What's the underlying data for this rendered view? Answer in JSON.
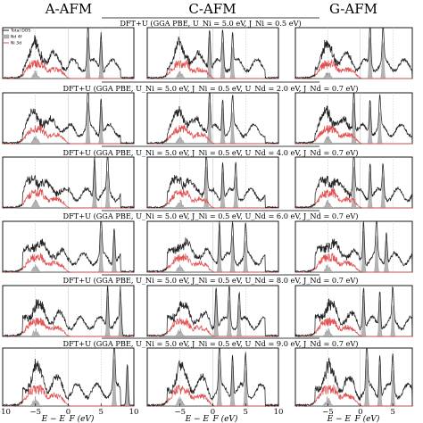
{
  "chart_data": {
    "type": "area",
    "columns": [
      "A-AFM",
      "C-AFM",
      "G-AFM"
    ],
    "row_titles": [
      "DFT+U (GGA PBE,    U_Ni = 5.0 eV, J_Ni = 0.5 eV)",
      "DFT+U (GGA PBE,    U_Ni = 5.0 eV, J_Ni = 0.5 eV,    U_Nd = 2.0 eV, J_Nd = 0.7 eV)",
      "DFT+U (GGA PBE,    U_Ni = 5.0 eV, J_Ni = 0.5 eV,    U_Nd = 4.0 eV, J_Nd = 0.7 eV)",
      "DFT+U (GGA PBE,    U_Ni = 5.0 eV, J_Ni = 0.5 eV,    U_Nd = 6.0 eV, J_Nd = 0.7 eV)",
      "DFT+U (GGA PBE,    U_Ni = 5.0 eV, J_Ni = 0.5 eV,    U_Nd = 8.0 eV, J_Nd = 0.7 eV)",
      "DFT+U (GGA PBE,    U_Ni = 5.0 eV, J_Ni = 0.5 eV,    U_Nd = 9.0 eV, J_Nd = 0.7 eV)"
    ],
    "xlabel": "E − E_F (eV)",
    "x_ticks": [
      [
        "−10",
        "−5",
        "0",
        "5",
        "10"
      ],
      [
        "−5",
        "0",
        "5",
        "10"
      ],
      [
        "−5",
        "0",
        "5"
      ]
    ],
    "xlim": [
      [
        -10,
        10
      ],
      [
        -10,
        10
      ],
      [
        -10,
        8
      ]
    ],
    "legend": {
      "entries": [
        "Total DOS",
        "Nd 4f",
        "Ni 3d"
      ],
      "placement": "top-left (first panel)"
    },
    "colors": {
      "total": "#222222",
      "nd4f": "#b4b4b4",
      "ni3d": "#e05050",
      "grid": "#bbbbbb"
    },
    "series": [
      {
        "name": "Total DOS"
      },
      {
        "name": "Nd 4f"
      },
      {
        "name": "Ni 3d"
      }
    ],
    "nd4f_peak_positions_eV": [
      [
        [
          3.0,
          5.0
        ],
        [
          3.0,
          5.0
        ],
        [
          4.0,
          6.0
        ],
        [
          5.0,
          7.0
        ],
        [
          6.0,
          8.0
        ],
        [
          7.0,
          9.0
        ]
      ],
      [
        [
          -0.5,
          1.5,
          3.0
        ],
        [
          -0.5,
          1.5,
          3.0
        ],
        [
          -1.0,
          1.5,
          3.5
        ],
        [
          1.0,
          3.0,
          5.0
        ],
        [
          0.5,
          2.5,
          4.0
        ],
        [
          1.0,
          3.0,
          5.0
        ]
      ],
      [
        [
          1.5,
          3.5
        ],
        [
          -1.0,
          1.5,
          3.0
        ],
        [
          -1.0,
          1.5,
          3.5
        ],
        [
          0.5,
          2.5,
          4.0
        ],
        [
          0.5,
          3.0,
          5.0
        ],
        [
          1.0,
          3.0,
          5.0
        ]
      ]
    ]
  }
}
